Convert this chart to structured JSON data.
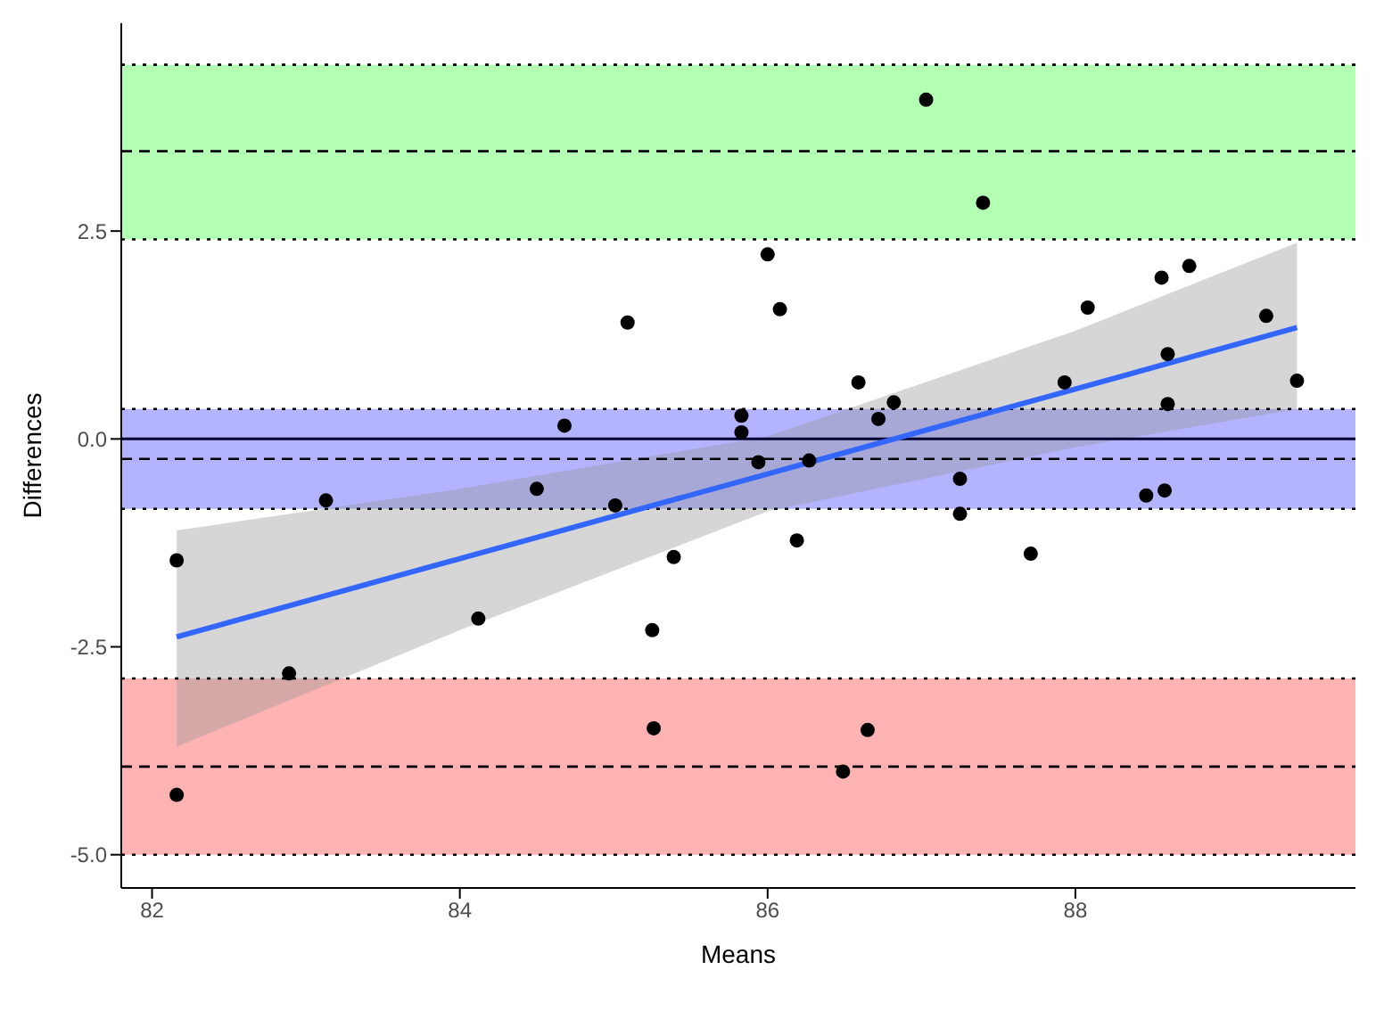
{
  "chart_data": {
    "type": "scatter",
    "xlabel": "Means",
    "ylabel": "Differences",
    "xlim": [
      81.8,
      89.82
    ],
    "ylim": [
      -5.4,
      5.0
    ],
    "xticks": [
      82,
      84,
      86,
      88
    ],
    "yticks": [
      {
        "value": -5,
        "label": "-5.0"
      },
      {
        "value": -2.5,
        "label": "-2.5"
      },
      {
        "value": 0,
        "label": "0.0"
      },
      {
        "value": 2.5,
        "label": "2.5"
      }
    ],
    "grid": false,
    "bands": [
      {
        "axis": "y",
        "from": 2.4,
        "to": 4.5,
        "color": "#b3ffb3"
      },
      {
        "axis": "y",
        "from": -0.84,
        "to": 0.36,
        "color": "#b3b3ff"
      },
      {
        "axis": "y",
        "from": -5.0,
        "to": -2.88,
        "color": "#ffb3b3"
      }
    ],
    "ref_lines": [
      {
        "axis": "y",
        "value": 0,
        "color": "#000033",
        "line_style": "solid"
      },
      {
        "axis": "y",
        "value": 3.46,
        "color": "#000000",
        "line_style": "dashed"
      },
      {
        "axis": "y",
        "value": -0.24,
        "color": "#000000",
        "line_style": "dashed"
      },
      {
        "axis": "y",
        "value": -3.94,
        "color": "#000000",
        "line_style": "dashed"
      },
      {
        "axis": "y",
        "value": 4.5,
        "color": "#000000",
        "line_style": "dotted"
      },
      {
        "axis": "y",
        "value": 2.4,
        "color": "#000000",
        "line_style": "dotted"
      },
      {
        "axis": "y",
        "value": 0.36,
        "color": "#000000",
        "line_style": "dotted"
      },
      {
        "axis": "y",
        "value": -0.84,
        "color": "#000000",
        "line_style": "dotted"
      },
      {
        "axis": "y",
        "value": -2.88,
        "color": "#000000",
        "line_style": "dotted"
      },
      {
        "axis": "y",
        "value": -5.0,
        "color": "#000000",
        "line_style": "dotted"
      }
    ],
    "series": [
      {
        "color": "#000000",
        "marker": "circle",
        "x": [
          82.16,
          82.16,
          82.89,
          83.13,
          84.12,
          84.5,
          84.68,
          85.01,
          85.09,
          85.25,
          85.26,
          85.39,
          85.83,
          85.83,
          85.94,
          86.0,
          86.08,
          86.19,
          86.27,
          86.49,
          86.59,
          86.65,
          86.72,
          86.82,
          87.03,
          87.25,
          87.25,
          87.4,
          87.71,
          87.93,
          88.08,
          88.46,
          88.56,
          88.58,
          88.6,
          88.6,
          88.74,
          89.24,
          89.44
        ],
        "values": [
          -1.46,
          -4.28,
          -2.82,
          -0.74,
          -2.16,
          -0.6,
          0.16,
          -0.8,
          1.4,
          -2.3,
          -3.48,
          -1.42,
          0.28,
          0.08,
          -0.28,
          2.22,
          1.56,
          -1.22,
          -0.26,
          -4.0,
          0.68,
          -3.5,
          0.24,
          0.44,
          4.08,
          -0.48,
          -0.9,
          2.84,
          -1.38,
          0.68,
          1.58,
          -0.68,
          1.94,
          -0.62,
          1.02,
          0.42,
          2.08,
          1.48,
          0.7
        ]
      },
      {
        "type": "line",
        "color": "#3366ff",
        "marker": "none",
        "line_style": "solid",
        "x": [
          82.16,
          84,
          86,
          88,
          89.44
        ],
        "values": [
          -2.38,
          -1.44,
          -0.42,
          0.6,
          1.34
        ],
        "lower": [
          -3.7,
          -2.3,
          -0.87,
          -0.1,
          0.36
        ],
        "upper": [
          -1.1,
          -0.6,
          0.03,
          1.3,
          2.36
        ]
      }
    ]
  }
}
